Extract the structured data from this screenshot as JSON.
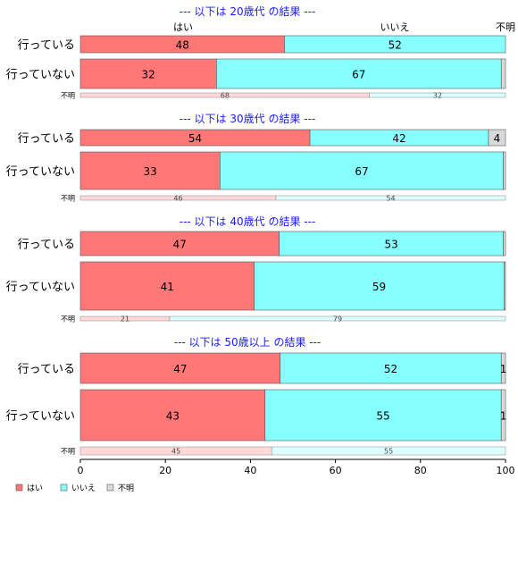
{
  "chart_data": {
    "type": "bar",
    "orientation": "horizontal",
    "stacked": true,
    "normalized_to": 100,
    "top_category_labels": [
      "はい",
      "いいえ",
      "不明"
    ],
    "series": [
      {
        "name": "はい",
        "color": "#ff7777",
        "light_color": "#ffd9d9"
      },
      {
        "name": "いいえ",
        "color": "#88ffff",
        "light_color": "#ddffff"
      },
      {
        "name": "不明",
        "color": "#d9d9d9",
        "light_color": "#f2f2f2"
      }
    ],
    "xaxis": {
      "ticks": [
        0,
        20,
        40,
        60,
        80,
        100
      ],
      "xlim": [
        0,
        100
      ]
    },
    "legend": {
      "placement": "bottom-left",
      "entries": [
        "はい",
        "いいえ",
        "不明"
      ]
    },
    "panels": [
      {
        "title": "--- 以下は 20歳代 の結果 ---",
        "rows": [
          {
            "label": "行っている",
            "values": [
              48,
              52,
              0
            ],
            "labels": [
              "48",
              "52",
              ""
            ]
          },
          {
            "label": "行っていない",
            "values": [
              32,
              67,
              1
            ],
            "labels": [
              "32",
              "67",
              ""
            ]
          }
        ],
        "unknown": {
          "label": "不明",
          "values": [
            68,
            32
          ],
          "labels": [
            "68",
            "32"
          ]
        }
      },
      {
        "title": "--- 以下は 30歳代 の結果 ---",
        "rows": [
          {
            "label": "行っている",
            "values": [
              54,
              42,
              4
            ],
            "labels": [
              "54",
              "42",
              "4"
            ]
          },
          {
            "label": "行っていない",
            "values": [
              33,
              67,
              0.5
            ],
            "labels": [
              "33",
              "67",
              ""
            ]
          }
        ],
        "unknown": {
          "label": "不明",
          "values": [
            46,
            54
          ],
          "labels": [
            "46",
            "54"
          ]
        }
      },
      {
        "title": "--- 以下は 40歳代 の結果 ---",
        "rows": [
          {
            "label": "行っている",
            "values": [
              47,
              53,
              0.5
            ],
            "labels": [
              "47",
              "53",
              ""
            ]
          },
          {
            "label": "行っていない",
            "values": [
              41,
              59,
              0.3
            ],
            "labels": [
              "41",
              "59",
              ""
            ]
          }
        ],
        "unknown": {
          "label": "不明",
          "values": [
            21,
            79
          ],
          "labels": [
            "21",
            "79"
          ]
        }
      },
      {
        "title": "--- 以下は 50歳以上 の結果 ---",
        "rows": [
          {
            "label": "行っている",
            "values": [
              47,
              52,
              1
            ],
            "labels": [
              "47",
              "52",
              "1"
            ]
          },
          {
            "label": "行っていない",
            "values": [
              43,
              55,
              1
            ],
            "labels": [
              "43",
              "55",
              "1"
            ]
          }
        ],
        "unknown": {
          "label": "不明",
          "values": [
            45,
            55
          ],
          "labels": [
            "45",
            "55"
          ]
        }
      }
    ]
  }
}
